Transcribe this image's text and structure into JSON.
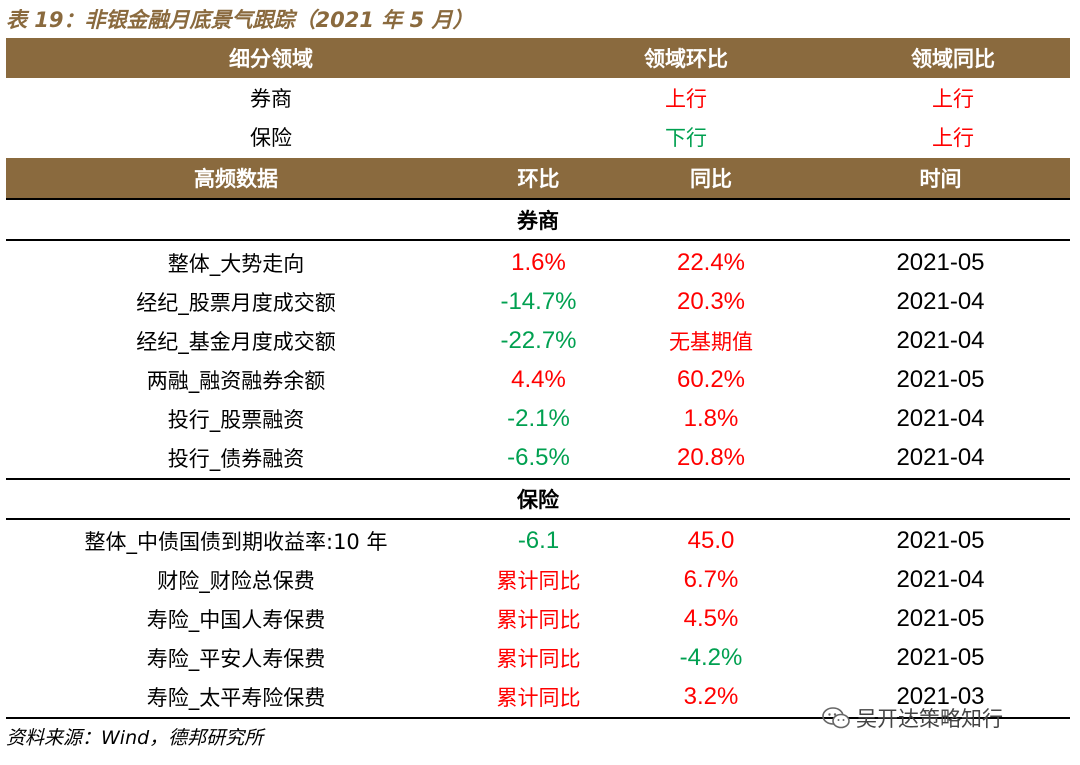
{
  "title": "表 19：非银金融月底景气跟踪（2021 年 5 月）",
  "domain_header": {
    "col1": "细分领域",
    "col2": "领域环比",
    "col3": "领域同比"
  },
  "domain_rows": [
    {
      "name": "券商",
      "mom": "上行",
      "mom_color": "#ff0000",
      "yoy": "上行",
      "yoy_color": "#ff0000"
    },
    {
      "name": "保险",
      "mom": "下行",
      "mom_color": "#00a050",
      "yoy": "上行",
      "yoy_color": "#ff0000"
    }
  ],
  "hf_header": {
    "col1": "高频数据",
    "col2": "环比",
    "col3": "同比",
    "col4": "时间"
  },
  "sections": [
    {
      "name": "券商",
      "rows": [
        {
          "item": "整体_大势走向",
          "mom": "1.6%",
          "mom_color": "#ff0000",
          "yoy": "22.4%",
          "yoy_color": "#ff0000",
          "time": "2021-05"
        },
        {
          "item": "经纪_股票月度成交额",
          "mom": "-14.7%",
          "mom_color": "#00a050",
          "yoy": "20.3%",
          "yoy_color": "#ff0000",
          "time": "2021-04"
        },
        {
          "item": "经纪_基金月度成交额",
          "mom": "-22.7%",
          "mom_color": "#00a050",
          "yoy": "无基期值",
          "yoy_color": "#ff0000",
          "time": "2021-04"
        },
        {
          "item": "两融_融资融券余额",
          "mom": "4.4%",
          "mom_color": "#ff0000",
          "yoy": "60.2%",
          "yoy_color": "#ff0000",
          "time": "2021-05"
        },
        {
          "item": "投行_股票融资",
          "mom": "-2.1%",
          "mom_color": "#00a050",
          "yoy": "1.8%",
          "yoy_color": "#ff0000",
          "time": "2021-04"
        },
        {
          "item": "投行_债券融资",
          "mom": "-6.5%",
          "mom_color": "#00a050",
          "yoy": "20.8%",
          "yoy_color": "#ff0000",
          "time": "2021-04"
        }
      ]
    },
    {
      "name": "保险",
      "rows": [
        {
          "item": "整体_中债国债到期收益率:10 年",
          "mom": "-6.1",
          "mom_color": "#00a050",
          "yoy": "45.0",
          "yoy_color": "#ff0000",
          "time": "2021-05"
        },
        {
          "item": "财险_财险总保费",
          "mom": "累计同比",
          "mom_color": "#ff0000",
          "yoy": "6.7%",
          "yoy_color": "#ff0000",
          "time": "2021-04"
        },
        {
          "item": "寿险_中国人寿保费",
          "mom": "累计同比",
          "mom_color": "#ff0000",
          "yoy": "4.5%",
          "yoy_color": "#ff0000",
          "time": "2021-05"
        },
        {
          "item": "寿险_平安人寿保费",
          "mom": "累计同比",
          "mom_color": "#ff0000",
          "yoy": "-4.2%",
          "yoy_color": "#00a050",
          "time": "2021-05"
        },
        {
          "item": "寿险_太平寿险保费",
          "mom": "累计同比",
          "mom_color": "#ff0000",
          "yoy": "3.2%",
          "yoy_color": "#ff0000",
          "time": "2021-03"
        }
      ]
    }
  ],
  "source": "资料来源：Wind，德邦研究所",
  "watermark": "吴开达策略知行",
  "colors": {
    "header_bg": "#8a6a3e",
    "title": "#8a6a3e",
    "up": "#ff0000",
    "down": "#00a050"
  }
}
